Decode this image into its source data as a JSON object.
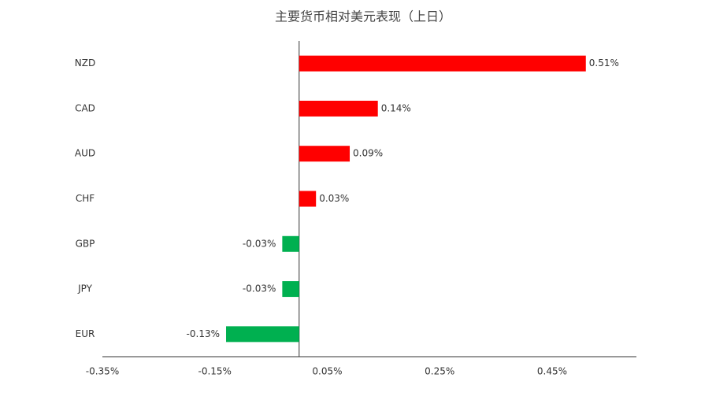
{
  "chart_data": {
    "type": "hbar",
    "title": "主要货币相对美元表现（上日）",
    "categories": [
      "NZD",
      "CAD",
      "AUD",
      "CHF",
      "GBP",
      "JPY",
      "EUR"
    ],
    "values": [
      0.51,
      0.14,
      0.09,
      0.03,
      -0.03,
      -0.03,
      -0.13
    ],
    "value_labels": [
      "0.51%",
      "0.14%",
      "0.09%",
      "0.03%",
      "-0.03%",
      "-0.03%",
      "-0.13%"
    ],
    "positive_color": "#ff0000",
    "negative_color": "#00b050",
    "xlim": [
      -0.35,
      0.6
    ],
    "xticks": [
      {
        "value": -0.35,
        "label": "-0.35%"
      },
      {
        "value": -0.15,
        "label": "-0.15%"
      },
      {
        "value": 0.05,
        "label": "0.05%"
      },
      {
        "value": 0.25,
        "label": "0.25%"
      },
      {
        "value": 0.45,
        "label": "0.45%"
      }
    ],
    "grid": false
  }
}
